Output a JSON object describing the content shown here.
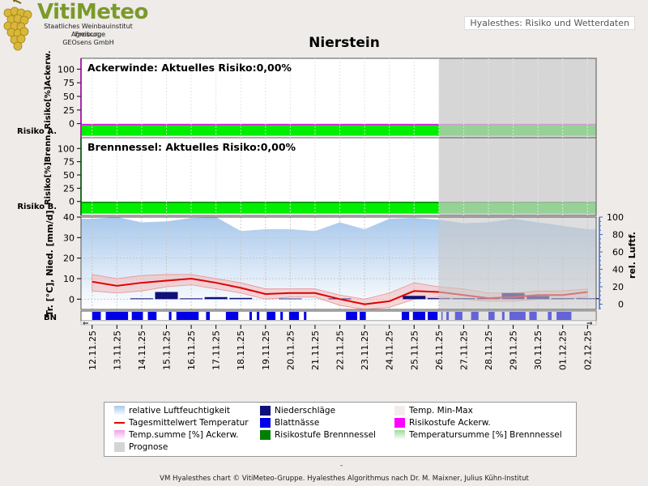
{
  "header": {
    "logo_title": "VitiMeteo",
    "logo_lines": [
      "Staatliches Weinbauinstitut Freiburg",
      "Agroscope",
      "GEOsens GmbH"
    ],
    "top_link": "Hyalesthes: Risiko und Wetterdaten",
    "chart_title": "Nierstein"
  },
  "footer": "VM Hyalesthes chart © VitiMeteo-Gruppe. Hyalesthes Algorithmus nach Dr. M. Maixner, Julius Kühn-Institut",
  "footer_dash": "-",
  "colors": {
    "risk_bar": "#00ee00",
    "prognose": "#c8c8c8",
    "humidity": "#a8c8ec",
    "temp_line": "#e00000",
    "temp_band": "#f4b8b8",
    "precip": "#10107a",
    "wetness": "#0000e6",
    "ackerwinde_axis": "#ff00ff",
    "brennnessel_axis": "#008000"
  },
  "legend": [
    {
      "label": "relative Luftfeuchtigkeit",
      "icon": "humidity-swatch",
      "color": "#a8c8ec"
    },
    {
      "label": "Niederschläge",
      "icon": "precip-swatch",
      "color": "#10107a"
    },
    {
      "label": "Temp. Min-Max",
      "icon": "temp-minmax-swatch",
      "color": "#f4ecec"
    },
    {
      "label": "Tagesmittelwert Temperatur",
      "icon": "temp-line-swatch",
      "color": "#e00000"
    },
    {
      "label": "Blattnässe",
      "icon": "wetness-swatch",
      "color": "#0000e6"
    },
    {
      "label": "Risikostufe Ackerw.",
      "icon": "risk-ackerwinde-swatch",
      "color": "#ff00ff"
    },
    {
      "label": "Temp.summe [%] Ackerw.",
      "icon": "tempsum-ackerwinde-swatch",
      "color": "#f0a0e8"
    },
    {
      "label": "Risikostufe Brennnessel",
      "icon": "risk-brennnessel-swatch",
      "color": "#008000"
    },
    {
      "label": "Temperatursumme [%] Brennnessel",
      "icon": "tempsum-brennnessel-swatch",
      "color": "#a0d8a0"
    },
    {
      "label": "Prognose",
      "icon": "prognose-swatch",
      "color": "#d4d4d4"
    }
  ],
  "chart_data": [
    {
      "type": "area",
      "title": "Ackerwinde: Aktuelles Risiko:0,00%",
      "ylabel": "Risiko[%]Ackerw.",
      "side_label": "Risiko A.",
      "ylim": [
        -5,
        105
      ],
      "yticks": [
        0,
        25,
        50,
        75,
        100
      ],
      "risk_level": "low",
      "risk_percent": 0.0,
      "prognose_from": "26.11.25"
    },
    {
      "type": "area",
      "title": "Brennnessel: Aktuelles Risiko:0,00%",
      "ylabel": "Risiko[%]Brenn.",
      "side_label": "Risiko B.",
      "ylim": [
        -5,
        105
      ],
      "yticks": [
        0,
        25,
        50,
        75,
        100
      ],
      "risk_level": "low",
      "risk_percent": 0.0,
      "prognose_from": "26.11.25"
    },
    {
      "type": "line",
      "ylabel_left": "Tr. [°C], Nied. [mm/d]",
      "ylabel_right": "rel. Luftf.",
      "side_label": "BN",
      "ylim_left": [
        -5,
        40
      ],
      "yticks_left": [
        0,
        10,
        20,
        30,
        40
      ],
      "ylim_right": [
        -6,
        100
      ],
      "yticks_right": [
        0,
        20,
        40,
        60,
        80,
        100
      ],
      "grid": true,
      "prognose_from": "26.11.25",
      "x": [
        "12.11.25",
        "13.11.25",
        "14.11.25",
        "15.11.25",
        "16.11.25",
        "17.11.25",
        "18.11.25",
        "19.11.25",
        "20.11.25",
        "21.11.25",
        "22.11.25",
        "23.11.25",
        "24.11.25",
        "25.11.25",
        "26.11.25",
        "27.11.25",
        "28.11.25",
        "29.11.25",
        "30.11.25",
        "01.12.25",
        "02.12.25"
      ],
      "series": [
        {
          "name": "relative Luftfeuchtigkeit",
          "axis": "right",
          "values": [
            98,
            100,
            94,
            95,
            99,
            100,
            84,
            86,
            86,
            84,
            94,
            86,
            98,
            99,
            97,
            93,
            94,
            98,
            94,
            90,
            86
          ]
        },
        {
          "name": "Tagesmittelwert Temperatur",
          "axis": "left",
          "values": [
            8.5,
            6.5,
            8,
            9,
            10,
            8,
            5.5,
            2.5,
            3,
            3,
            0,
            -2.5,
            -1,
            4,
            3.5,
            2,
            0.5,
            1,
            2,
            2,
            3.5
          ]
        },
        {
          "name": "Temp. max",
          "axis": "left",
          "values": [
            12,
            10,
            11.5,
            12,
            12,
            10,
            8,
            5,
            5,
            5,
            2,
            0,
            3,
            8,
            6,
            5,
            3,
            3,
            4,
            4,
            5
          ]
        },
        {
          "name": "Temp. min",
          "axis": "left",
          "values": [
            4,
            3,
            4,
            6,
            7,
            5,
            3,
            0,
            1,
            1,
            -3,
            -5,
            -4,
            0,
            1,
            0,
            -1,
            -1,
            0,
            0,
            1
          ]
        },
        {
          "name": "Niederschläge",
          "axis": "left",
          "values": [
            0,
            0,
            0.4,
            3.5,
            0.4,
            1,
            0.6,
            0,
            0.3,
            0,
            0.3,
            0,
            0,
            1.6,
            0.5,
            0.5,
            0.5,
            3,
            1.5,
            0.5,
            0.5
          ]
        }
      ],
      "leaf_wetness_segments": [
        [
          12.0,
          12.35
        ],
        [
          12.55,
          13.45
        ],
        [
          13.6,
          14.05
        ],
        [
          14.25,
          14.6
        ],
        [
          15.1,
          15.2
        ],
        [
          15.4,
          16.3
        ],
        [
          16.6,
          16.75
        ],
        [
          17.4,
          17.9
        ],
        [
          18.35,
          18.45
        ],
        [
          18.65,
          18.75
        ],
        [
          19.05,
          19.4
        ],
        [
          19.6,
          19.7
        ],
        [
          19.95,
          20.35
        ],
        [
          20.55,
          20.65
        ],
        [
          22.25,
          22.7
        ],
        [
          22.8,
          23.05
        ],
        [
          24.5,
          24.8
        ],
        [
          24.95,
          25.45
        ],
        [
          25.55,
          25.95
        ],
        [
          26.1,
          26.15
        ],
        [
          26.3,
          26.4
        ],
        [
          26.65,
          26.95
        ],
        [
          27.3,
          27.6
        ],
        [
          28.0,
          28.25
        ],
        [
          28.55,
          28.65
        ],
        [
          28.85,
          29.5
        ],
        [
          29.65,
          29.95
        ],
        [
          30.4,
          30.55
        ],
        [
          30.75,
          31.35
        ]
      ]
    }
  ]
}
